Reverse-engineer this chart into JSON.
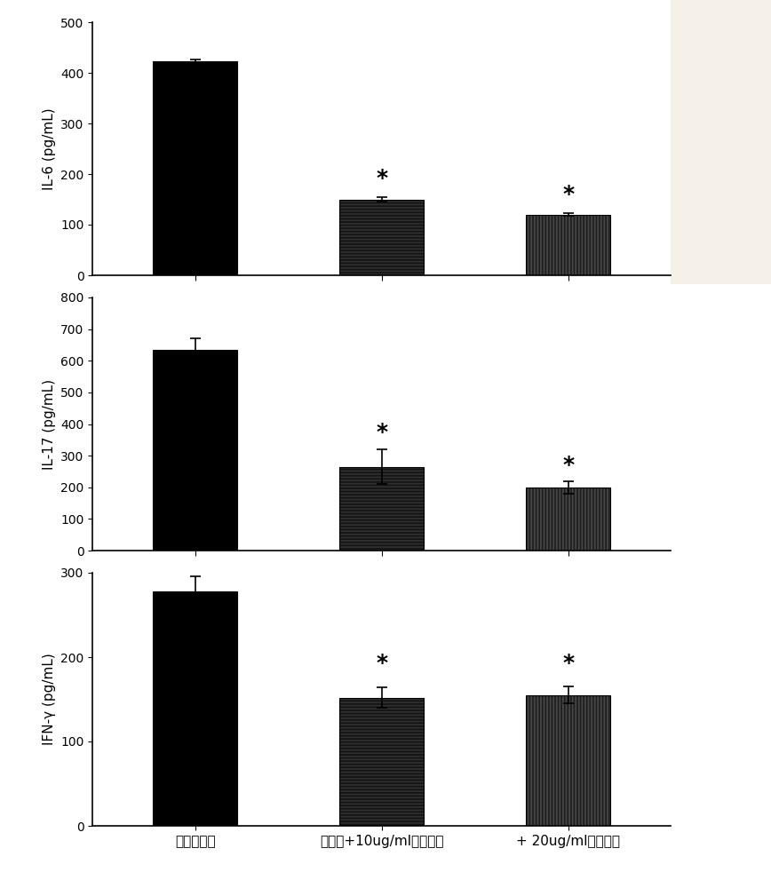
{
  "groups": [
    "正常润肤霜",
    "润手霜+10ug/ml裸藻多糖",
    "+ 20ug/ml裸藻多糖"
  ],
  "plots": [
    {
      "ylabel": "IL-6 (pg/mL)",
      "ylim": [
        0,
        500
      ],
      "yticks": [
        0,
        100,
        200,
        300,
        400,
        500
      ],
      "values": [
        422,
        150,
        120
      ],
      "errors": [
        5,
        5,
        3
      ],
      "show_star": [
        false,
        true,
        true
      ],
      "star_y": [
        null,
        170,
        138
      ]
    },
    {
      "ylabel": "IL-17 (pg/mL)",
      "ylim": [
        0,
        800
      ],
      "yticks": [
        0,
        100,
        200,
        300,
        400,
        500,
        600,
        700,
        800
      ],
      "values": [
        635,
        265,
        200
      ],
      "errors": [
        35,
        55,
        20
      ],
      "show_star": [
        false,
        true,
        true
      ],
      "star_y": [
        null,
        340,
        235
      ]
    },
    {
      "ylabel": "IFN-γ (pg/mL)",
      "ylim": [
        0,
        300
      ],
      "yticks": [
        0,
        100,
        200,
        300
      ],
      "values": [
        278,
        152,
        155
      ],
      "errors": [
        18,
        12,
        10
      ],
      "show_star": [
        false,
        true,
        true
      ],
      "star_y": [
        null,
        180,
        180
      ]
    }
  ],
  "bar1_color": "#000000",
  "bar2_facecolor": "#444444",
  "bar3_facecolor": "#666666",
  "bar_edgecolor": "#000000",
  "hatch2": "--",
  "hatch3": "||",
  "background_color": "#ffffff",
  "panel_color": "#f5f0e8",
  "ylabel_fontsize": 11,
  "tick_fontsize": 10,
  "star_fontsize": 18,
  "bar_width": 0.45,
  "xlim": [
    -0.55,
    2.55
  ],
  "x_positions": [
    0,
    1,
    2
  ],
  "subplot_hspace": 0.15
}
